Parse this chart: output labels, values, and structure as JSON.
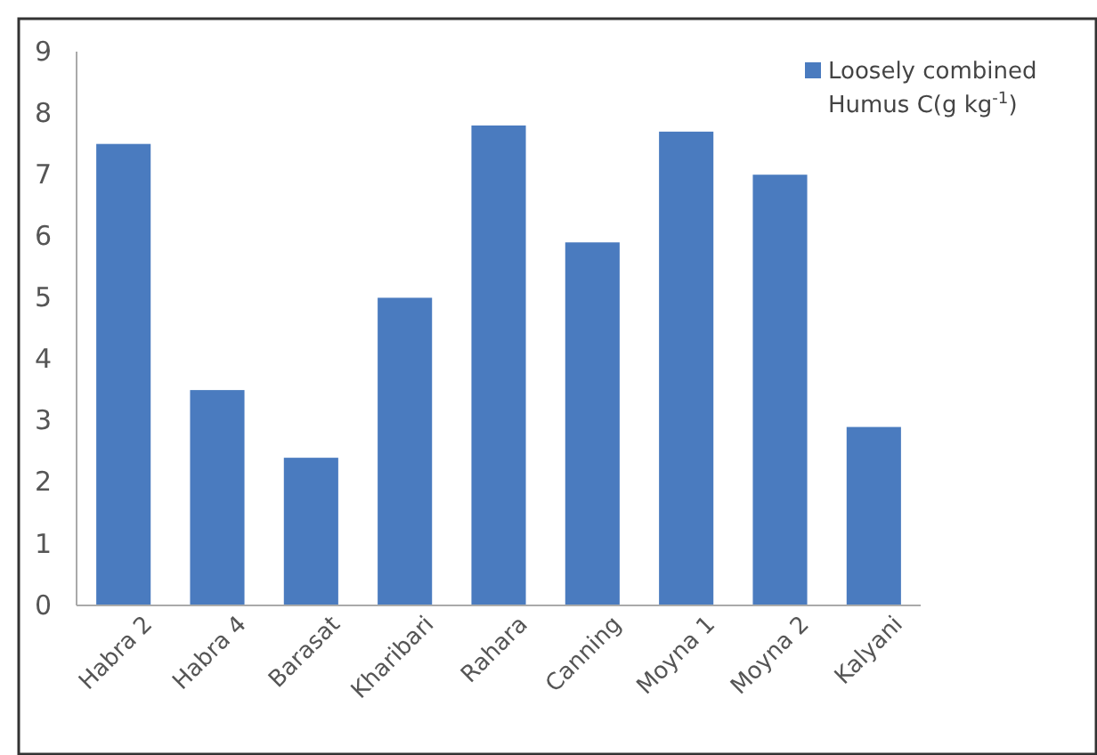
{
  "chart_data": {
    "type": "bar",
    "categories": [
      "Habra 2",
      "Habra 4",
      "Barasat",
      "Kharibari",
      "Rahara",
      "Canning",
      "Moyna 1",
      "Moyna 2",
      "Kalyani"
    ],
    "series": [
      {
        "name": "Loosely combined Humus C(g kg$^{-1}$)",
        "color": "#4a7bbf",
        "values": [
          7.5,
          3.5,
          2.4,
          5.0,
          7.8,
          5.9,
          7.7,
          7.0,
          2.9
        ]
      }
    ],
    "ylim": [
      0,
      9
    ],
    "yticks": [
      0,
      1,
      2,
      3,
      4,
      5,
      6,
      7,
      8,
      9
    ],
    "grid": false,
    "legend": "top right"
  }
}
